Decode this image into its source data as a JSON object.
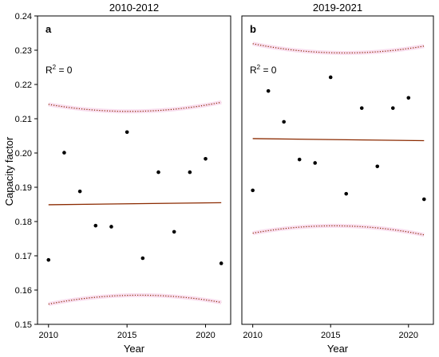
{
  "figure": {
    "ylabel": "Capacity factor"
  },
  "chart_data": [
    {
      "type": "scatter",
      "title": "2010-2012",
      "panel_label": "a",
      "annotation": "R2 = 0",
      "xlabel": "Year",
      "ylabel": "Capacity factor",
      "xlim": [
        2009.3,
        2021.6
      ],
      "ylim": [
        0.15,
        0.24
      ],
      "xticks": [
        2010,
        2015,
        2020
      ],
      "yticks": [
        0.15,
        0.16,
        0.17,
        0.18,
        0.19,
        0.2,
        0.21,
        0.22,
        0.23,
        0.24
      ],
      "grid": false,
      "x": [
        2010,
        2011,
        2012,
        2013,
        2014,
        2015,
        2016,
        2017,
        2018,
        2019,
        2020,
        2021
      ],
      "y": [
        0.1688,
        0.2001,
        0.1888,
        0.1788,
        0.1785,
        0.2061,
        0.1693,
        0.1944,
        0.177,
        0.1944,
        0.1983,
        0.1678
      ],
      "fit": {
        "x": [
          2010,
          2021
        ],
        "y": [
          0.1849,
          0.1855
        ]
      },
      "band_upper": {
        "x": [
          2010,
          2016,
          2021
        ],
        "y": [
          0.2142,
          0.2122,
          0.2148
        ]
      },
      "band_lower": {
        "x": [
          2010,
          2016,
          2021
        ],
        "y": [
          0.1559,
          0.1585,
          0.1564
        ]
      }
    },
    {
      "type": "scatter",
      "title": "2019-2021",
      "panel_label": "b",
      "annotation": "R2 = 0",
      "xlabel": "Year",
      "ylabel": "",
      "xlim": [
        2009.3,
        2021.6
      ],
      "ylim": [
        0.15,
        0.24
      ],
      "xticks": [
        2010,
        2015,
        2020
      ],
      "yticks": [],
      "grid": false,
      "x": [
        2010,
        2011,
        2012,
        2013,
        2014,
        2015,
        2016,
        2017,
        2018,
        2019,
        2020,
        2021
      ],
      "y": [
        0.1891,
        0.2181,
        0.2091,
        0.1981,
        0.1971,
        0.2221,
        0.1881,
        0.2131,
        0.1961,
        0.2131,
        0.2161,
        0.1865
      ],
      "fit": {
        "x": [
          2010,
          2021
        ],
        "y": [
          0.2042,
          0.2036
        ]
      },
      "band_upper": {
        "x": [
          2010,
          2016,
          2021
        ],
        "y": [
          0.2319,
          0.2292,
          0.2312
        ]
      },
      "band_lower": {
        "x": [
          2010,
          2016,
          2021
        ],
        "y": [
          0.1766,
          0.1787,
          0.1761
        ]
      }
    }
  ],
  "colors": {
    "fit_line": "#8b2a00",
    "band_line": "#8b2a00",
    "band_glow": "#f4c2e2",
    "points": "#000000",
    "frame": "#000000"
  }
}
